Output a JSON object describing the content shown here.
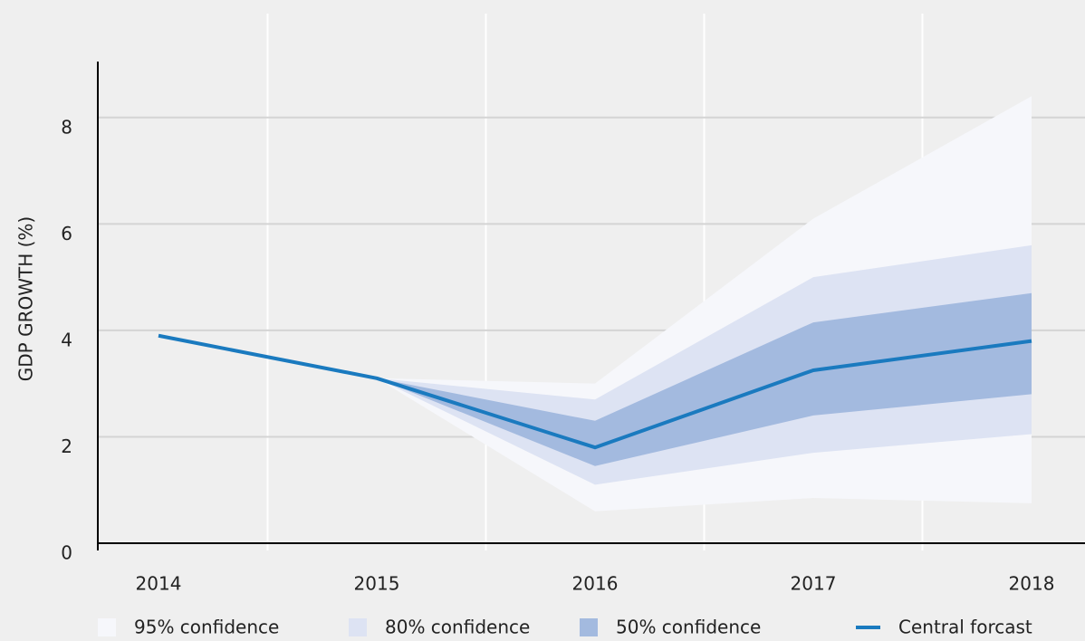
{
  "chart_data": {
    "type": "fan",
    "y_label": "GDP GROWTH (%)",
    "categories": [
      "2014",
      "2015",
      "2016",
      "2017",
      "2018"
    ],
    "bands": [
      {
        "name": "95% confidence",
        "color": "#f6f7fb",
        "lower": [
          null,
          3.1,
          0.6,
          0.85,
          0.75
        ],
        "upper": [
          null,
          3.1,
          3.0,
          6.1,
          8.4
        ]
      },
      {
        "name": "80% confidence",
        "color": "#dde3f3",
        "lower": [
          null,
          3.1,
          1.1,
          1.7,
          2.05
        ],
        "upper": [
          null,
          3.1,
          2.7,
          5.0,
          5.6
        ]
      },
      {
        "name": "50% confidence",
        "color": "#a3badf",
        "lower": [
          null,
          3.1,
          1.45,
          2.4,
          2.8
        ],
        "upper": [
          null,
          3.1,
          2.3,
          4.15,
          4.7
        ]
      }
    ],
    "series": [
      {
        "name": "Central forcast",
        "color": "#1a7abf",
        "values": [
          3.9,
          3.1,
          1.8,
          3.25,
          3.8
        ]
      }
    ],
    "ylim": [
      0,
      9
    ],
    "yticks": [
      0,
      2,
      4,
      6,
      8
    ],
    "grid": true
  }
}
